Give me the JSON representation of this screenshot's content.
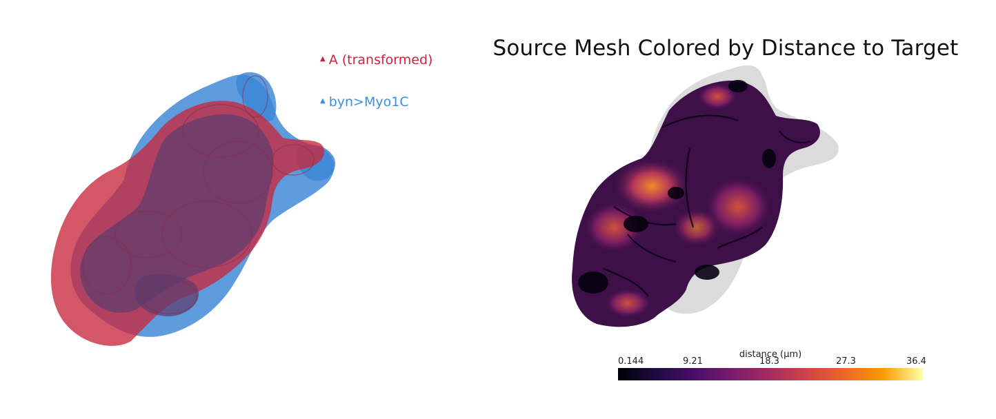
{
  "left_view": {
    "legend": {
      "items": [
        {
          "label": "A (transformed)",
          "color": "#d0223d",
          "marker": "▲"
        },
        {
          "label": "byn>Myo1C",
          "color": "#3b8fe0",
          "marker": "▲"
        }
      ]
    },
    "colors": {
      "source_mesh": "#c8283c",
      "target_mesh": "#3a86d6",
      "overlap": "#5e3c6e"
    }
  },
  "right_view": {
    "title": "Source Mesh Colored by Distance to Target",
    "colorbar": {
      "title": "distance (µm)",
      "colormap": "inferno",
      "min": 0.144,
      "max": 36.4,
      "tick_labels": [
        "0.144",
        "9.21",
        "18.3",
        "27.3",
        "36.4"
      ],
      "tick_values": [
        0.144,
        9.21,
        18.3,
        27.3,
        36.4
      ]
    },
    "colors": {
      "target_mesh": "#bdbdbd"
    }
  }
}
